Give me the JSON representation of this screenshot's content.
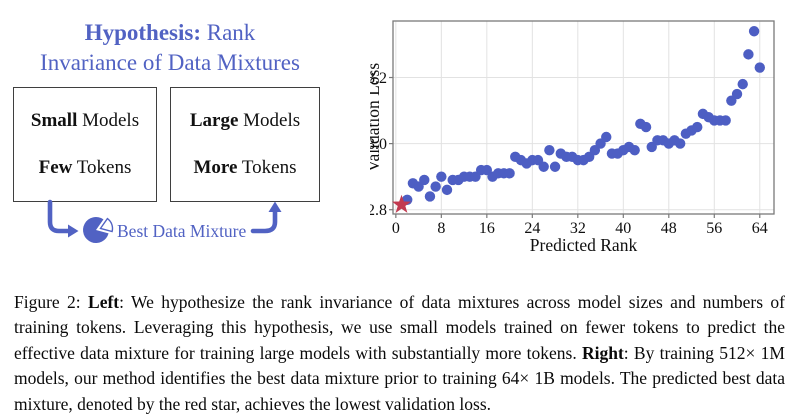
{
  "left_panel": {
    "title": {
      "bold": "Hypothesis:",
      "rest": " Rank",
      "line2": "Invariance of Data Mixtures"
    },
    "box_small": {
      "line1": {
        "bold": "Small",
        "rest": " Models"
      },
      "line2": {
        "bold": "Few",
        "rest": " Tokens"
      }
    },
    "box_large": {
      "line1": {
        "bold": "Large",
        "rest": " Models"
      },
      "line2": {
        "bold": "More",
        "rest": " Tokens"
      }
    },
    "best_label": "Best Data Mixture"
  },
  "caption": {
    "segments": [
      {
        "t": "Figure 2: ",
        "b": false
      },
      {
        "t": "Left",
        "b": true
      },
      {
        "t": ": We hypothesize the rank invariance of data mixtures across model sizes and numbers of training tokens.  Leveraging this hypothesis, we use small models trained on fewer tokens to predict the effective data mixture for training large models with substantially more tokens. ",
        "b": false
      },
      {
        "t": "Right",
        "b": true
      },
      {
        "t": ": By training 512× 1M models, our method identifies the best data mixture prior to training 64× 1B models. The predicted best data mixture, denoted by the red star, achieves the lowest validation loss.",
        "b": false
      }
    ]
  },
  "chart_data": {
    "type": "scatter",
    "title": "",
    "xlabel": "Predicted Rank",
    "ylabel": "Validation Loss",
    "xlim": [
      -0.5,
      66.5
    ],
    "ylim": [
      2.787,
      3.371
    ],
    "xticks": [
      0,
      8,
      16,
      24,
      32,
      40,
      48,
      56,
      64
    ],
    "yticks": [
      2.8,
      3.0,
      3.2
    ],
    "grid": true,
    "legend": "none",
    "series": [
      {
        "name": "data-mixtures",
        "marker": "circle",
        "color": "#4d5ec3",
        "points": [
          [
            2,
            2.83
          ],
          [
            3,
            2.88
          ],
          [
            4,
            2.87
          ],
          [
            5,
            2.89
          ],
          [
            6,
            2.84
          ],
          [
            7,
            2.87
          ],
          [
            8,
            2.9
          ],
          [
            9,
            2.86
          ],
          [
            10,
            2.89
          ],
          [
            11,
            2.89
          ],
          [
            12,
            2.9
          ],
          [
            13,
            2.9
          ],
          [
            14,
            2.9
          ],
          [
            15,
            2.92
          ],
          [
            16,
            2.92
          ],
          [
            17,
            2.9
          ],
          [
            18,
            2.91
          ],
          [
            19,
            2.91
          ],
          [
            20,
            2.91
          ],
          [
            21,
            2.96
          ],
          [
            22,
            2.95
          ],
          [
            23,
            2.94
          ],
          [
            24,
            2.95
          ],
          [
            25,
            2.95
          ],
          [
            26,
            2.93
          ],
          [
            27,
            2.98
          ],
          [
            28,
            2.93
          ],
          [
            29,
            2.97
          ],
          [
            30,
            2.96
          ],
          [
            31,
            2.96
          ],
          [
            32,
            2.95
          ],
          [
            33,
            2.95
          ],
          [
            34,
            2.96
          ],
          [
            35,
            2.98
          ],
          [
            36,
            3.0
          ],
          [
            37,
            3.02
          ],
          [
            38,
            2.97
          ],
          [
            39,
            2.97
          ],
          [
            40,
            2.98
          ],
          [
            41,
            2.99
          ],
          [
            42,
            2.98
          ],
          [
            43,
            3.06
          ],
          [
            44,
            3.05
          ],
          [
            45,
            2.99
          ],
          [
            46,
            3.01
          ],
          [
            47,
            3.01
          ],
          [
            48,
            3.0
          ],
          [
            49,
            3.01
          ],
          [
            50,
            3.0
          ],
          [
            51,
            3.03
          ],
          [
            52,
            3.04
          ],
          [
            53,
            3.05
          ],
          [
            54,
            3.09
          ],
          [
            55,
            3.08
          ],
          [
            56,
            3.07
          ],
          [
            57,
            3.07
          ],
          [
            58,
            3.07
          ],
          [
            59,
            3.13
          ],
          [
            60,
            3.15
          ],
          [
            61,
            3.18
          ],
          [
            62,
            3.27
          ],
          [
            63,
            3.34
          ],
          [
            64,
            3.23
          ]
        ]
      },
      {
        "name": "predicted-best-data-mixture",
        "marker": "star",
        "color": "#c23a50",
        "points": [
          [
            1,
            2.815
          ]
        ]
      }
    ]
  },
  "colors": {
    "accent_blue": "#5162c3",
    "dot_blue": "#4d5ec3",
    "star_red": "#c23a50",
    "grid_line": "#e2e2e2",
    "axis_spine": "#7a7a7a",
    "box_border": "#3f3f3f",
    "text_black": "#0f0f0f"
  }
}
